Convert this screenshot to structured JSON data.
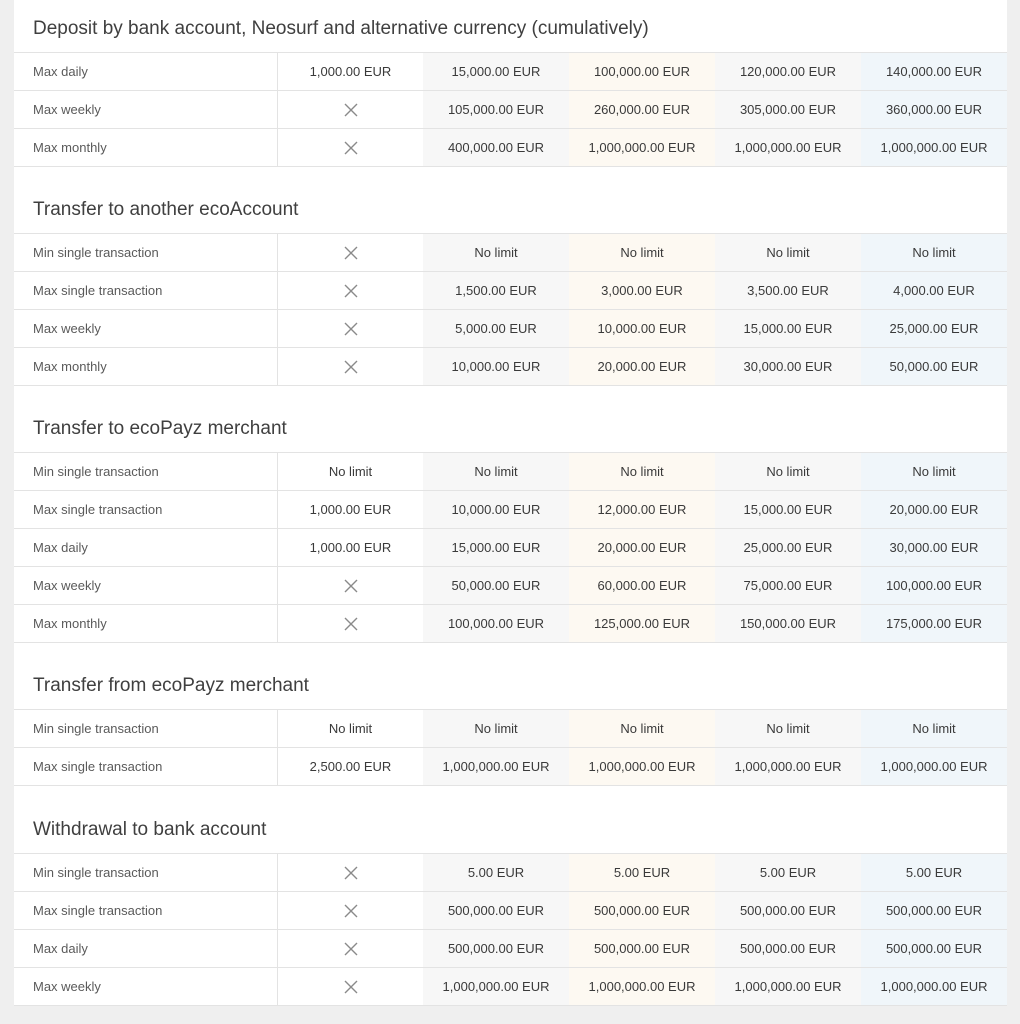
{
  "sections": [
    {
      "title": "Deposit by bank account, Neosurf and alternative currency (cumulatively)",
      "rows": [
        {
          "label": "Max daily",
          "values": [
            "1,000.00 EUR",
            "15,000.00 EUR",
            "100,000.00 EUR",
            "120,000.00 EUR",
            "140,000.00 EUR"
          ]
        },
        {
          "label": "Max weekly",
          "values": [
            null,
            "105,000.00 EUR",
            "260,000.00 EUR",
            "305,000.00 EUR",
            "360,000.00 EUR"
          ]
        },
        {
          "label": "Max monthly",
          "values": [
            null,
            "400,000.00 EUR",
            "1,000,000.00 EUR",
            "1,000,000.00 EUR",
            "1,000,000.00 EUR"
          ]
        }
      ]
    },
    {
      "title": "Transfer to another ecoAccount",
      "rows": [
        {
          "label": "Min single transaction",
          "values": [
            null,
            "No limit",
            "No limit",
            "No limit",
            "No limit"
          ]
        },
        {
          "label": "Max single transaction",
          "values": [
            null,
            "1,500.00 EUR",
            "3,000.00 EUR",
            "3,500.00 EUR",
            "4,000.00 EUR"
          ]
        },
        {
          "label": "Max weekly",
          "values": [
            null,
            "5,000.00 EUR",
            "10,000.00 EUR",
            "15,000.00 EUR",
            "25,000.00 EUR"
          ]
        },
        {
          "label": "Max monthly",
          "values": [
            null,
            "10,000.00 EUR",
            "20,000.00 EUR",
            "30,000.00 EUR",
            "50,000.00 EUR"
          ]
        }
      ]
    },
    {
      "title": "Transfer to ecoPayz merchant",
      "rows": [
        {
          "label": "Min single transaction",
          "values": [
            "No limit",
            "No limit",
            "No limit",
            "No limit",
            "No limit"
          ]
        },
        {
          "label": "Max single transaction",
          "values": [
            "1,000.00 EUR",
            "10,000.00 EUR",
            "12,000.00 EUR",
            "15,000.00 EUR",
            "20,000.00 EUR"
          ]
        },
        {
          "label": "Max daily",
          "values": [
            "1,000.00 EUR",
            "15,000.00 EUR",
            "20,000.00 EUR",
            "25,000.00 EUR",
            "30,000.00 EUR"
          ]
        },
        {
          "label": "Max weekly",
          "values": [
            null,
            "50,000.00 EUR",
            "60,000.00 EUR",
            "75,000.00 EUR",
            "100,000.00 EUR"
          ]
        },
        {
          "label": "Max monthly",
          "values": [
            null,
            "100,000.00 EUR",
            "125,000.00 EUR",
            "150,000.00 EUR",
            "175,000.00 EUR"
          ]
        }
      ]
    },
    {
      "title": "Transfer from ecoPayz merchant",
      "rows": [
        {
          "label": "Min single transaction",
          "values": [
            "No limit",
            "No limit",
            "No limit",
            "No limit",
            "No limit"
          ]
        },
        {
          "label": "Max single transaction",
          "values": [
            "2,500.00 EUR",
            "1,000,000.00 EUR",
            "1,000,000.00 EUR",
            "1,000,000.00 EUR",
            "1,000,000.00 EUR"
          ]
        }
      ]
    },
    {
      "title": "Withdrawal to bank account",
      "rows": [
        {
          "label": "Min single transaction",
          "values": [
            null,
            "5.00 EUR",
            "5.00 EUR",
            "5.00 EUR",
            "5.00 EUR"
          ]
        },
        {
          "label": "Max single transaction",
          "values": [
            null,
            "500,000.00 EUR",
            "500,000.00 EUR",
            "500,000.00 EUR",
            "500,000.00 EUR"
          ]
        },
        {
          "label": "Max daily",
          "values": [
            null,
            "500,000.00 EUR",
            "500,000.00 EUR",
            "500,000.00 EUR",
            "500,000.00 EUR"
          ]
        },
        {
          "label": "Max weekly",
          "values": [
            null,
            "1,000,000.00 EUR",
            "1,000,000.00 EUR",
            "1,000,000.00 EUR",
            "1,000,000.00 EUR"
          ]
        }
      ]
    }
  ],
  "icons": {
    "not_available": "close-icon"
  },
  "colors": {
    "page_bg": "#efefef",
    "panel_bg": "#ffffff",
    "col_grey": "#f7f7f7",
    "col_cream": "#fdf9f2",
    "col_blue": "#f0f6fa",
    "divider": "#e3e3e3"
  }
}
